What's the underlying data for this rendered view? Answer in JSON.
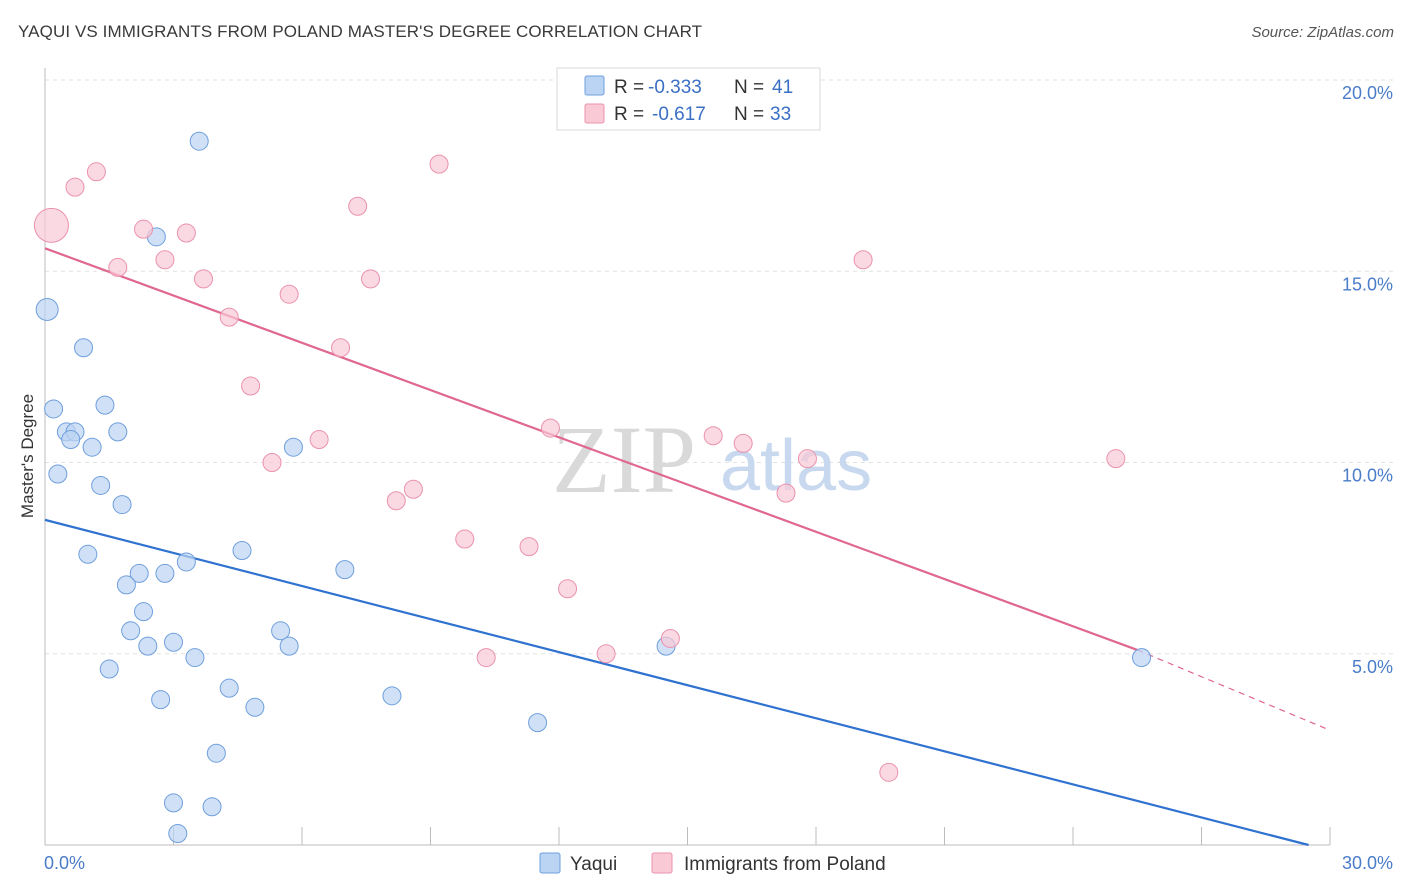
{
  "header": {
    "title": "YAQUI VS IMMIGRANTS FROM POLAND MASTER'S DEGREE CORRELATION CHART",
    "source": "Source: ZipAtlas.com"
  },
  "watermark": {
    "zip": "ZIP",
    "atlas": "atlas"
  },
  "colors": {
    "yaqui_fill": "#bcd4f3",
    "yaqui_stroke": "#6f9fdc",
    "yaqui_line": "#2f72d0",
    "poland_fill": "#f9c9d6",
    "poland_stroke": "#ea92ad",
    "poland_line": "#e0678f",
    "grid": "#e2e2e2",
    "axis_text": "#4a7cc9"
  },
  "chart_data": {
    "type": "scatter",
    "ylabel": "Master's Degree",
    "xlim": [
      0,
      30
    ],
    "ylim": [
      0,
      20
    ],
    "x_tick_labels": [
      "0.0%",
      "30.0%"
    ],
    "y_ticks": [
      5,
      10,
      15,
      20
    ],
    "y_tick_labels": [
      "5.0%",
      "10.0%",
      "15.0%",
      "20.0%"
    ],
    "legend": [
      {
        "name": "Yaqui",
        "r_label": "R =",
        "r_value": "-0.333",
        "n_label": "N =",
        "n_value": "41"
      },
      {
        "name": "Immigrants from Poland",
        "r_label": "R =",
        "r_value": "-0.617",
        "n_label": "N =",
        "n_value": "33"
      }
    ],
    "series": [
      {
        "name": "Yaqui",
        "trend": {
          "x0": 0,
          "y0": 8.5,
          "x1": 29.5,
          "y1": 0.0
        },
        "points": [
          [
            0.05,
            14.0,
            10
          ],
          [
            3.6,
            18.4,
            8
          ],
          [
            2.6,
            15.9,
            8
          ],
          [
            0.9,
            13.0,
            8
          ],
          [
            0.2,
            11.4,
            8
          ],
          [
            1.4,
            11.5,
            8
          ],
          [
            0.5,
            10.8,
            8
          ],
          [
            0.7,
            10.8,
            8
          ],
          [
            0.6,
            10.6,
            8
          ],
          [
            1.7,
            10.8,
            8
          ],
          [
            1.1,
            10.4,
            8
          ],
          [
            5.8,
            10.4,
            8
          ],
          [
            0.3,
            9.7,
            8
          ],
          [
            1.3,
            9.4,
            8
          ],
          [
            1.8,
            8.9,
            8
          ],
          [
            4.6,
            7.7,
            8
          ],
          [
            1.0,
            7.6,
            8
          ],
          [
            3.3,
            7.4,
            8
          ],
          [
            2.2,
            7.1,
            8
          ],
          [
            2.8,
            7.1,
            8
          ],
          [
            7.0,
            7.2,
            8
          ],
          [
            1.9,
            6.8,
            8
          ],
          [
            2.3,
            6.1,
            8
          ],
          [
            2.0,
            5.6,
            8
          ],
          [
            2.4,
            5.2,
            8
          ],
          [
            3.0,
            5.3,
            8
          ],
          [
            5.5,
            5.6,
            8
          ],
          [
            5.7,
            5.2,
            8
          ],
          [
            3.5,
            4.9,
            8
          ],
          [
            1.5,
            4.6,
            8
          ],
          [
            14.5,
            5.2,
            8
          ],
          [
            25.6,
            4.9,
            8
          ],
          [
            4.3,
            4.1,
            8
          ],
          [
            2.7,
            3.8,
            8
          ],
          [
            8.1,
            3.9,
            8
          ],
          [
            4.9,
            3.6,
            8
          ],
          [
            11.5,
            3.2,
            8
          ],
          [
            4.0,
            2.4,
            8
          ],
          [
            3.0,
            1.1,
            8
          ],
          [
            3.9,
            1.0,
            8
          ],
          [
            3.1,
            0.3,
            8
          ]
        ]
      },
      {
        "name": "Immigrants from Poland",
        "trend": {
          "x0": 0,
          "y0": 15.6,
          "x1": 25.5,
          "y1": 5.1
        },
        "trend_ext": {
          "x0": 25.5,
          "y0": 5.1,
          "x1": 30,
          "y1": 3.0
        },
        "points": [
          [
            0.15,
            16.2,
            16
          ],
          [
            1.2,
            17.6,
            8
          ],
          [
            0.7,
            17.2,
            8
          ],
          [
            9.2,
            17.8,
            8
          ],
          [
            7.3,
            16.7,
            8
          ],
          [
            2.3,
            16.1,
            8
          ],
          [
            3.3,
            16.0,
            8
          ],
          [
            2.8,
            15.3,
            8
          ],
          [
            1.7,
            15.1,
            8
          ],
          [
            3.7,
            14.8,
            8
          ],
          [
            7.6,
            14.8,
            8
          ],
          [
            5.7,
            14.4,
            8
          ],
          [
            19.1,
            15.3,
            8
          ],
          [
            4.3,
            13.8,
            8
          ],
          [
            6.9,
            13.0,
            8
          ],
          [
            4.8,
            12.0,
            8
          ],
          [
            11.8,
            10.9,
            8
          ],
          [
            15.6,
            10.7,
            8
          ],
          [
            6.4,
            10.6,
            8
          ],
          [
            16.3,
            10.5,
            8
          ],
          [
            17.8,
            10.1,
            8
          ],
          [
            25.0,
            10.1,
            8
          ],
          [
            5.3,
            10.0,
            8
          ],
          [
            8.6,
            9.3,
            8
          ],
          [
            8.2,
            9.0,
            8
          ],
          [
            17.3,
            9.2,
            8
          ],
          [
            9.8,
            8.0,
            8
          ],
          [
            11.3,
            7.8,
            8
          ],
          [
            12.2,
            6.7,
            8
          ],
          [
            14.6,
            5.4,
            8
          ],
          [
            10.3,
            4.9,
            8
          ],
          [
            13.1,
            5.0,
            8
          ],
          [
            19.7,
            1.9,
            8
          ]
        ]
      }
    ]
  }
}
